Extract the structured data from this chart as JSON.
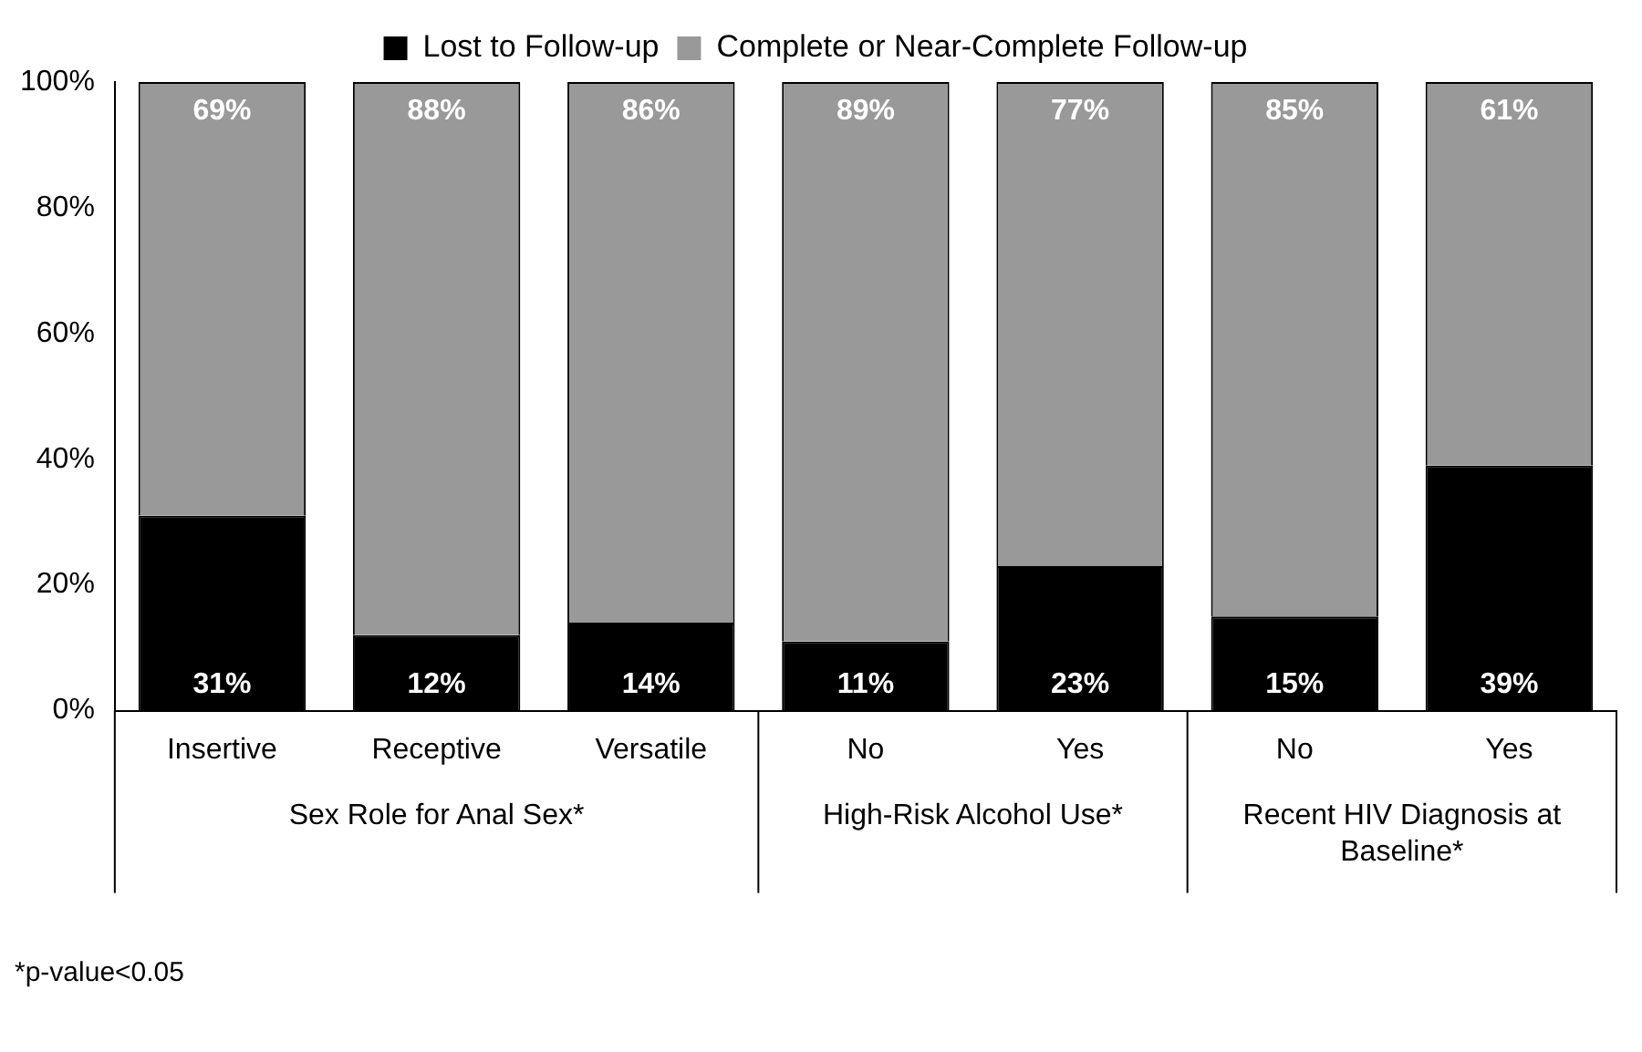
{
  "chart_data": {
    "type": "bar",
    "stacked": true,
    "categories": [
      "Insertive",
      "Receptive",
      "Versatile",
      "No",
      "Yes",
      "No",
      "Yes"
    ],
    "series": [
      {
        "name": "Lost to Follow-up",
        "color": "#000000",
        "values": [
          31,
          12,
          14,
          11,
          23,
          15,
          39
        ],
        "value_labels": [
          "31%",
          "12%",
          "14%",
          "11%",
          "23%",
          "15%",
          "39%"
        ]
      },
      {
        "name": "Complete or Near-Complete Follow-up",
        "color": "#999999",
        "values": [
          69,
          88,
          86,
          89,
          77,
          85,
          61
        ],
        "value_labels": [
          "69%",
          "88%",
          "86%",
          "89%",
          "77%",
          "85%",
          "61%"
        ]
      }
    ],
    "ylim": [
      0,
      100
    ],
    "yticks": [
      {
        "value": 0,
        "label": "0%"
      },
      {
        "value": 20,
        "label": "20%"
      },
      {
        "value": 40,
        "label": "40%"
      },
      {
        "value": 60,
        "label": "60%"
      },
      {
        "value": 80,
        "label": "80%"
      },
      {
        "value": 100,
        "label": "100%"
      }
    ],
    "grid": false,
    "legend": "top",
    "annotations": [
      "Sex Role for Anal Sex*",
      "High-Risk Alcohol Use*",
      "Recent HIV Diagnosis at Baseline*",
      "*p-value<0.05"
    ]
  }
}
